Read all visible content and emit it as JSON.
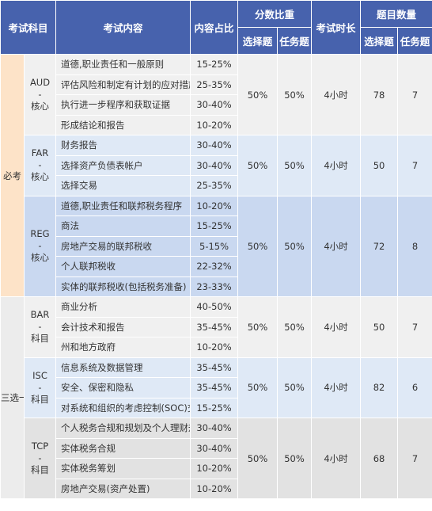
{
  "header": {
    "subject": "考试科目",
    "content": "考试内容",
    "ratio": "内容占比",
    "score": "分数比重",
    "duration": "考试时长",
    "count": "题目数量",
    "choice": "选择题",
    "task": "任务题"
  },
  "groups": [
    {
      "name": "必考",
      "subjects": [
        {
          "label": [
            "AUD",
            "-",
            "核心"
          ],
          "topics": [
            {
              "text": "道德,职业责任和一般原则",
              "ratio": "15-25%"
            },
            {
              "text": "评估风险和制定有计划的应对措施",
              "ratio": "25-35%"
            },
            {
              "text": "执行进一步程序和获取证据",
              "ratio": "30-40%"
            },
            {
              "text": "形成结论和报告",
              "ratio": "10-20%"
            }
          ],
          "score_choice": "50%",
          "score_task": "50%",
          "duration": "4小时",
          "count_choice": 78,
          "count_task": 7
        },
        {
          "label": [
            "FAR",
            "-",
            "核心"
          ],
          "topics": [
            {
              "text": "财务报告",
              "ratio": "30-40%"
            },
            {
              "text": "选择资产负债表帐户",
              "ratio": "30-40%"
            },
            {
              "text": "选择交易",
              "ratio": "25-35%"
            }
          ],
          "score_choice": "50%",
          "score_task": "50%",
          "duration": "4小时",
          "count_choice": 50,
          "count_task": 7
        },
        {
          "label": [
            "REG",
            "-",
            "核心"
          ],
          "topics": [
            {
              "text": "道德,职业责任和联邦税务程序",
              "ratio": "10-20%"
            },
            {
              "text": "商法",
              "ratio": "15-25%"
            },
            {
              "text": "房地产交易的联邦税收",
              "ratio": "5-15%"
            },
            {
              "text": "个人联邦税收",
              "ratio": "22-32%"
            },
            {
              "text": "实体的联邦税收(包括税务准备)",
              "ratio": "23-33%"
            }
          ],
          "score_choice": "50%",
          "score_task": "50%",
          "duration": "4小时",
          "count_choice": 72,
          "count_task": 8
        }
      ]
    },
    {
      "name": "三选一",
      "subjects": [
        {
          "label": [
            "BAR",
            "-",
            "科目"
          ],
          "topics": [
            {
              "text": "商业分析",
              "ratio": "40-50%"
            },
            {
              "text": "会计技术和报告",
              "ratio": "35-45%"
            },
            {
              "text": "州和地方政府",
              "ratio": "10-20%"
            }
          ],
          "score_choice": "50%",
          "score_task": "50%",
          "duration": "4小时",
          "count_choice": 50,
          "count_task": 7
        },
        {
          "label": [
            "ISC",
            "-",
            "科目"
          ],
          "topics": [
            {
              "text": "信息系统及数据管理",
              "ratio": "35-45%"
            },
            {
              "text": "安全、保密和隐私",
              "ratio": "35-45%"
            },
            {
              "text": "对系统和组织的考虑控制(SOC)交战",
              "ratio": "15-25%"
            }
          ],
          "score_choice": "50%",
          "score_task": "50%",
          "duration": "4小时",
          "count_choice": 82,
          "count_task": 6
        },
        {
          "label": [
            "TCP",
            "-",
            "科目"
          ],
          "topics": [
            {
              "text": "个人税务合规和规划及个人理财规划",
              "ratio": "30-40%"
            },
            {
              "text": "实体税务合规",
              "ratio": "30-40%"
            },
            {
              "text": "实体税务筹划",
              "ratio": "10-20%"
            },
            {
              "text": "房地产交易(资产处置)",
              "ratio": "10-20%"
            }
          ],
          "score_choice": "50%",
          "score_task": "50%",
          "duration": "4小时",
          "count_choice": 68,
          "count_task": 7
        }
      ]
    }
  ]
}
